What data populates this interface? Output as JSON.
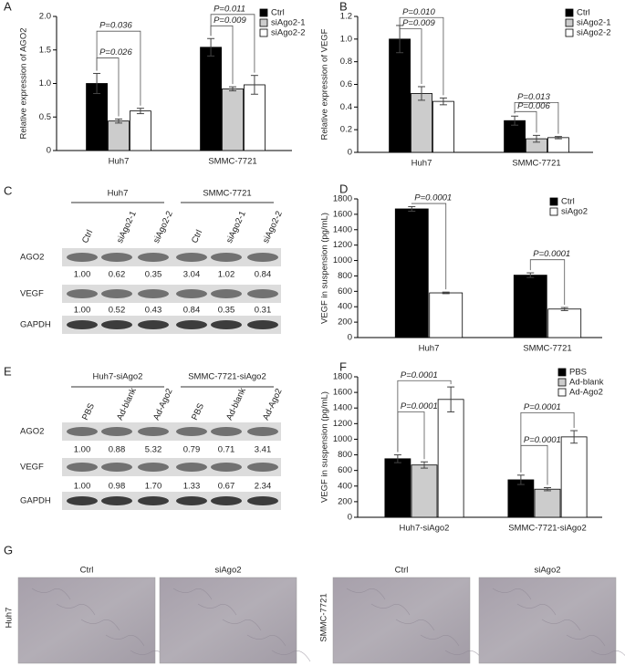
{
  "chart_data": [
    {
      "type": "bar",
      "panel": "A",
      "y_label": "Relative expression of AGO2",
      "categories": [
        "Huh7",
        "SMMC-7721"
      ],
      "series": [
        {
          "name": "Ctrl",
          "color": "#000000",
          "values": [
            1.0,
            1.54
          ],
          "errors": [
            0.15,
            0.13
          ]
        },
        {
          "name": "siAgo2-1",
          "color": "#cccccc",
          "values": [
            0.44,
            0.92
          ],
          "errors": [
            0.03,
            0.03
          ]
        },
        {
          "name": "siAgo2-2",
          "color": "#ffffff",
          "values": [
            0.59,
            0.98
          ],
          "errors": [
            0.04,
            0.14
          ]
        }
      ],
      "ylim": [
        0,
        2
      ],
      "yticks": [
        0,
        0.5,
        {
          "value": 1,
          "label": "1.0"
        },
        1.5,
        {
          "value": 2,
          "label": "2.0"
        }
      ],
      "annotations": [
        "P=0.036",
        "P=0.026",
        "P=0.011",
        "P=0.009"
      ],
      "legend": "upper right"
    },
    {
      "type": "bar",
      "panel": "B",
      "y_label": "Relative expression of VEGF",
      "categories": [
        "Huh7",
        "SMMC-7721"
      ],
      "series": [
        {
          "name": "Ctrl",
          "color": "#000000",
          "values": [
            1.0,
            0.28
          ],
          "errors": [
            0.12,
            0.04
          ]
        },
        {
          "name": "siAgo2-1",
          "color": "#cccccc",
          "values": [
            0.52,
            0.12
          ],
          "errors": [
            0.06,
            0.03
          ]
        },
        {
          "name": "siAgo2-2",
          "color": "#ffffff",
          "values": [
            0.45,
            0.13
          ],
          "errors": [
            0.03,
            0.01
          ]
        }
      ],
      "ylim": [
        0,
        1.2
      ],
      "yticks": [
        0,
        0.2,
        0.4,
        0.6,
        0.8,
        {
          "value": 1,
          "label": "1.0"
        },
        1.2
      ],
      "annotations": [
        "P=0.010",
        "P=0.009",
        "P=0.013",
        "P=0.006"
      ],
      "legend": "upper right"
    },
    {
      "type": "bar",
      "panel": "D",
      "y_label": "VEGF in suspension (pg/mL)",
      "categories": [
        "Huh7",
        "SMMC-7721"
      ],
      "series": [
        {
          "name": "Ctrl",
          "color": "#000000",
          "values": [
            1670,
            810
          ],
          "errors": [
            30,
            30
          ]
        },
        {
          "name": "siAgo2",
          "color": "#ffffff",
          "values": [
            580,
            370
          ],
          "errors": [
            10,
            20
          ]
        }
      ],
      "ylim": [
        0,
        1800
      ],
      "yticks": [
        0,
        200,
        400,
        600,
        800,
        1000,
        1200,
        1400,
        1600,
        1800
      ],
      "annotations": [
        "P=0.0001",
        "P=0.0001"
      ],
      "legend": "upper right"
    },
    {
      "type": "bar",
      "panel": "F",
      "y_label": "VEGF in suspension (pg/mL)",
      "categories": [
        "Huh7-siAgo2",
        "SMMC-7721-siAgo2"
      ],
      "series": [
        {
          "name": "PBS",
          "color": "#000000",
          "values": [
            750,
            480
          ],
          "errors": [
            50,
            60
          ]
        },
        {
          "name": "Ad-blank",
          "color": "#cccccc",
          "values": [
            670,
            360
          ],
          "errors": [
            40,
            20
          ]
        },
        {
          "name": "Ad-Ago2",
          "color": "#ffffff",
          "values": [
            1510,
            1030
          ],
          "errors": [
            160,
            80
          ]
        }
      ],
      "ylim": [
        0,
        1800
      ],
      "yticks": [
        0,
        200,
        400,
        600,
        800,
        1000,
        1200,
        1400,
        1600,
        1800
      ],
      "annotations": [
        "P=0.0001",
        "P=0.0001",
        "P=0.0001",
        "P=0.0001"
      ],
      "legend": "upper right"
    }
  ],
  "blots": [
    {
      "panel": "C",
      "groups": [
        "Huh7",
        "SMMC-7721"
      ],
      "lanes": [
        "Ctrl",
        "siAgo2-1",
        "siAgo2-2",
        "Ctrl",
        "siAgo2-1",
        "siAgo2-2"
      ],
      "rows": [
        "AGO2",
        "VEGF",
        "GAPDH"
      ],
      "quantification": [
        [
          "1.00",
          "0.62",
          "0.35",
          "3.04",
          "1.02",
          "0.84"
        ],
        [
          "1.00",
          "0.52",
          "0.43",
          "0.84",
          "0.35",
          "0.31"
        ]
      ]
    },
    {
      "panel": "E",
      "groups": [
        "Huh7-siAgo2",
        "SMMC-7721-siAgo2"
      ],
      "lanes": [
        "PBS",
        "Ad-blank",
        "Ad-Ago2",
        "PBS",
        "Ad-blank",
        "Ad-Ago2"
      ],
      "rows": [
        "AGO2",
        "VEGF",
        "GAPDH"
      ],
      "quantification": [
        [
          "1.00",
          "0.88",
          "5.32",
          "0.79",
          "0.71",
          "3.41"
        ],
        [
          "1.00",
          "0.98",
          "1.70",
          "1.33",
          "0.67",
          "2.34"
        ]
      ]
    }
  ],
  "images": {
    "panel": "G",
    "groups": [
      {
        "row_label": "Huh7",
        "columns": [
          "Ctrl",
          "siAgo2"
        ]
      },
      {
        "row_label": "SMMC-7721",
        "columns": [
          "Ctrl",
          "siAgo2"
        ]
      }
    ]
  }
}
